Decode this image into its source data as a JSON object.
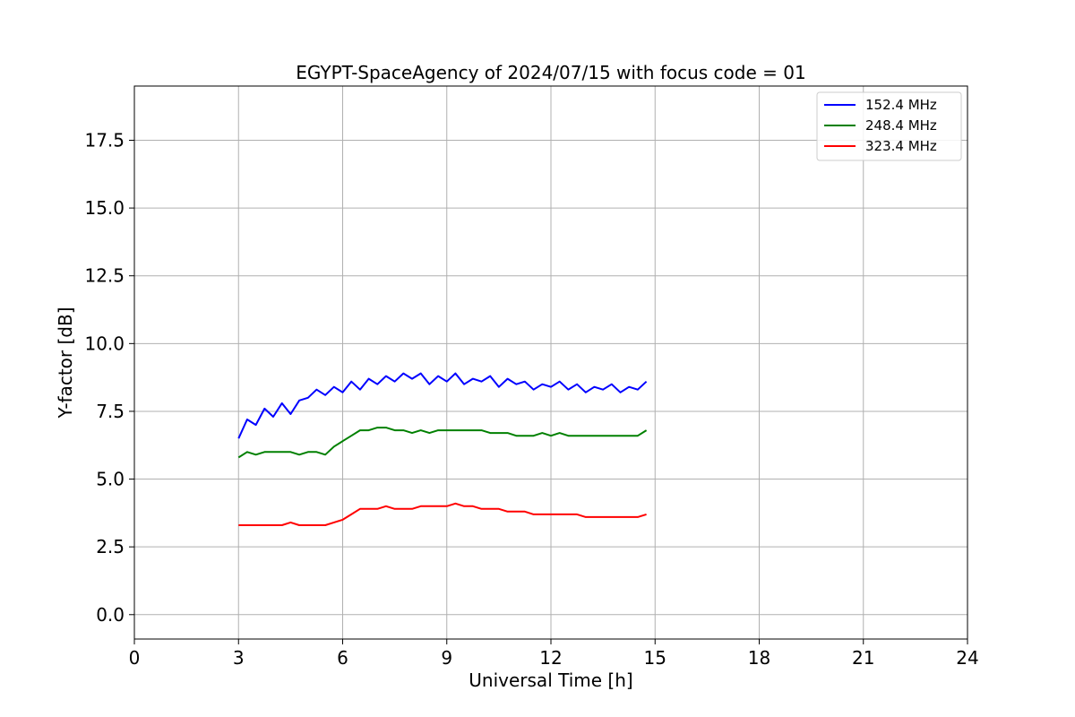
{
  "chart_data": {
    "type": "line",
    "title": "EGYPT-SpaceAgency of 2024/07/15 with focus code = 01",
    "xlabel": "Universal Time [h]",
    "ylabel": "Y-factor [dB]",
    "xlim": [
      0,
      24
    ],
    "ylim": [
      -0.9,
      19.5
    ],
    "xticks": [
      0,
      3,
      6,
      9,
      12,
      15,
      18,
      21,
      24
    ],
    "xtick_labels": [
      "0",
      "3",
      "6",
      "9",
      "12",
      "15",
      "18",
      "21",
      "24"
    ],
    "yticks": [
      0,
      2.5,
      5,
      7.5,
      10,
      12.5,
      15,
      17.5
    ],
    "ytick_labels": [
      "0.0",
      "2.5",
      "5.0",
      "7.5",
      "10.0",
      "12.5",
      "15.0",
      "17.5"
    ],
    "grid": true,
    "legend_position": "top-right",
    "series": [
      {
        "name": " 152.4 MHz",
        "color": "#0000ff",
        "x": [
          3.0,
          3.25,
          3.5,
          3.75,
          4.0,
          4.25,
          4.5,
          4.75,
          5.0,
          5.25,
          5.5,
          5.75,
          6.0,
          6.25,
          6.5,
          6.75,
          7.0,
          7.25,
          7.5,
          7.75,
          8.0,
          8.25,
          8.5,
          8.75,
          9.0,
          9.25,
          9.5,
          9.75,
          10.0,
          10.25,
          10.5,
          10.75,
          11.0,
          11.25,
          11.5,
          11.75,
          12.0,
          12.25,
          12.5,
          12.75,
          13.0,
          13.25,
          13.5,
          13.75,
          14.0,
          14.25,
          14.5,
          14.75
        ],
        "y": [
          6.5,
          7.2,
          7.0,
          7.6,
          7.3,
          7.8,
          7.4,
          7.9,
          8.0,
          8.3,
          8.1,
          8.4,
          8.2,
          8.6,
          8.3,
          8.7,
          8.5,
          8.8,
          8.6,
          8.9,
          8.7,
          8.9,
          8.5,
          8.8,
          8.6,
          8.9,
          8.5,
          8.7,
          8.6,
          8.8,
          8.4,
          8.7,
          8.5,
          8.6,
          8.3,
          8.5,
          8.4,
          8.6,
          8.3,
          8.5,
          8.2,
          8.4,
          8.3,
          8.5,
          8.2,
          8.4,
          8.3,
          8.6
        ]
      },
      {
        "name": " 248.4 MHz",
        "color": "#008000",
        "x": [
          3.0,
          3.25,
          3.5,
          3.75,
          4.0,
          4.25,
          4.5,
          4.75,
          5.0,
          5.25,
          5.5,
          5.75,
          6.0,
          6.25,
          6.5,
          6.75,
          7.0,
          7.25,
          7.5,
          7.75,
          8.0,
          8.25,
          8.5,
          8.75,
          9.0,
          9.25,
          9.5,
          9.75,
          10.0,
          10.25,
          10.5,
          10.75,
          11.0,
          11.25,
          11.5,
          11.75,
          12.0,
          12.25,
          12.5,
          12.75,
          13.0,
          13.25,
          13.5,
          13.75,
          14.0,
          14.25,
          14.5,
          14.75
        ],
        "y": [
          5.8,
          6.0,
          5.9,
          6.0,
          6.0,
          6.0,
          6.0,
          5.9,
          6.0,
          6.0,
          5.9,
          6.2,
          6.4,
          6.6,
          6.8,
          6.8,
          6.9,
          6.9,
          6.8,
          6.8,
          6.7,
          6.8,
          6.7,
          6.8,
          6.8,
          6.8,
          6.8,
          6.8,
          6.8,
          6.7,
          6.7,
          6.7,
          6.6,
          6.6,
          6.6,
          6.7,
          6.6,
          6.7,
          6.6,
          6.6,
          6.6,
          6.6,
          6.6,
          6.6,
          6.6,
          6.6,
          6.6,
          6.8
        ]
      },
      {
        "name": " 323.4 MHz",
        "color": "#ff0000",
        "x": [
          3.0,
          3.25,
          3.5,
          3.75,
          4.0,
          4.25,
          4.5,
          4.75,
          5.0,
          5.25,
          5.5,
          5.75,
          6.0,
          6.25,
          6.5,
          6.75,
          7.0,
          7.25,
          7.5,
          7.75,
          8.0,
          8.25,
          8.5,
          8.75,
          9.0,
          9.25,
          9.5,
          9.75,
          10.0,
          10.25,
          10.5,
          10.75,
          11.0,
          11.25,
          11.5,
          11.75,
          12.0,
          12.25,
          12.5,
          12.75,
          13.0,
          13.25,
          13.5,
          13.75,
          14.0,
          14.25,
          14.5,
          14.75
        ],
        "y": [
          3.3,
          3.3,
          3.3,
          3.3,
          3.3,
          3.3,
          3.4,
          3.3,
          3.3,
          3.3,
          3.3,
          3.4,
          3.5,
          3.7,
          3.9,
          3.9,
          3.9,
          4.0,
          3.9,
          3.9,
          3.9,
          4.0,
          4.0,
          4.0,
          4.0,
          4.1,
          4.0,
          4.0,
          3.9,
          3.9,
          3.9,
          3.8,
          3.8,
          3.8,
          3.7,
          3.7,
          3.7,
          3.7,
          3.7,
          3.7,
          3.6,
          3.6,
          3.6,
          3.6,
          3.6,
          3.6,
          3.6,
          3.7
        ]
      }
    ]
  }
}
